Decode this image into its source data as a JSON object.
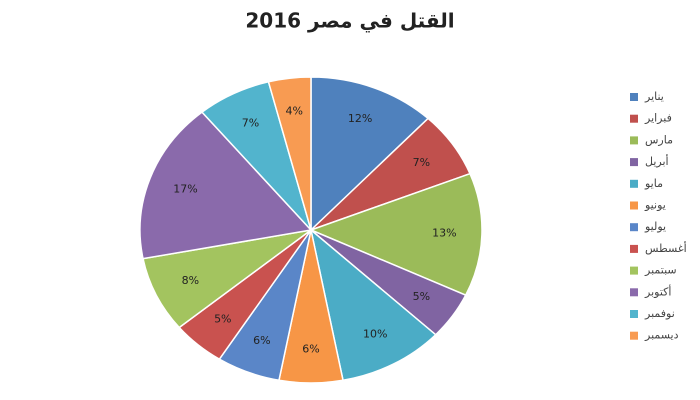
{
  "chart_data": {
    "type": "pie",
    "title": "القتل في مصر 2016",
    "categories": [
      "يناير",
      "فبراير",
      "مارس",
      "أبريل",
      "مايو",
      "يونيو",
      "يوليو",
      "أغسطس",
      "سبتمبر",
      "أكتوبر",
      "نوفمبر",
      "ديسمبر"
    ],
    "values": [
      12,
      7,
      13,
      5,
      10,
      6,
      6,
      5,
      8,
      17,
      7,
      4
    ],
    "value_labels": [
      "12%",
      "7%",
      "13%",
      "5%",
      "10%",
      "6%",
      "6%",
      "5%",
      "8%",
      "17%",
      "7%",
      "4%"
    ],
    "colors": [
      "#4f81bd",
      "#c0504d",
      "#9bbb59",
      "#8064a2",
      "#4bacc6",
      "#f79646",
      "#5a86c8",
      "#c9524f",
      "#a3c45f",
      "#8a6aab",
      "#52b4cd",
      "#f89b52"
    ],
    "legend": "right"
  }
}
